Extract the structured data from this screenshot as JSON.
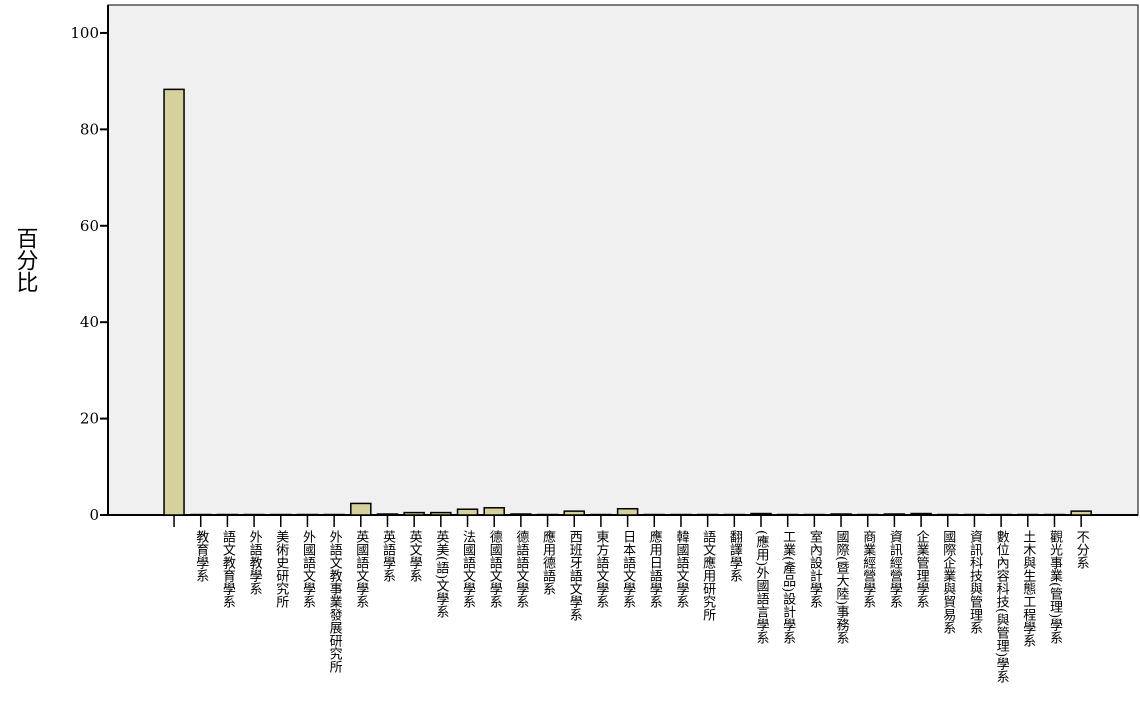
{
  "chart_data": {
    "type": "bar",
    "y_label": "百分比",
    "categories": [
      null,
      "教育學系",
      "語文教育學系",
      "外語教學系",
      "美術史研究所",
      "外國語文學系",
      "外語文教事業發展研究所",
      "英國語文學系",
      "英語學系",
      "英文學系",
      "英美(語)文學系",
      "法國語文學系",
      "德國語文學系",
      "德語語文學系",
      "應用德語系",
      "西班牙語文學系",
      "東方語文學系",
      "日本語文學系",
      "應用日語學系",
      "韓國語文學系",
      "語文應用研究所",
      "翻譯學系",
      "(應用)外國語言學系",
      "工業(產品)設計學系",
      "室內設計學系",
      "國際(暨大陸)事務系",
      "商業經營學系",
      "資訊經營學系",
      "企業管理學系",
      "國際企業與貿易系",
      "資訊科技與管理系",
      "數位內容科技(與管理)學系",
      "土木與生態工程學系",
      "觀光事業(管理)學系",
      "不分系"
    ],
    "values": [
      88.3,
      0.1,
      0.1,
      0.1,
      0.1,
      0.1,
      0.1,
      2.4,
      0.2,
      0.5,
      0.5,
      1.2,
      1.5,
      0.2,
      0.1,
      0.8,
      0.1,
      1.3,
      0.1,
      0.1,
      0.1,
      0.1,
      0.3,
      0.1,
      0.1,
      0.2,
      0.1,
      0.2,
      0.3,
      0.1,
      0.1,
      0.1,
      0.1,
      0.1,
      0.8
    ],
    "color": "#d6d09c",
    "ylim": [
      0,
      105.8
    ],
    "yticks": [
      0,
      20,
      40,
      60,
      80,
      100
    ]
  }
}
